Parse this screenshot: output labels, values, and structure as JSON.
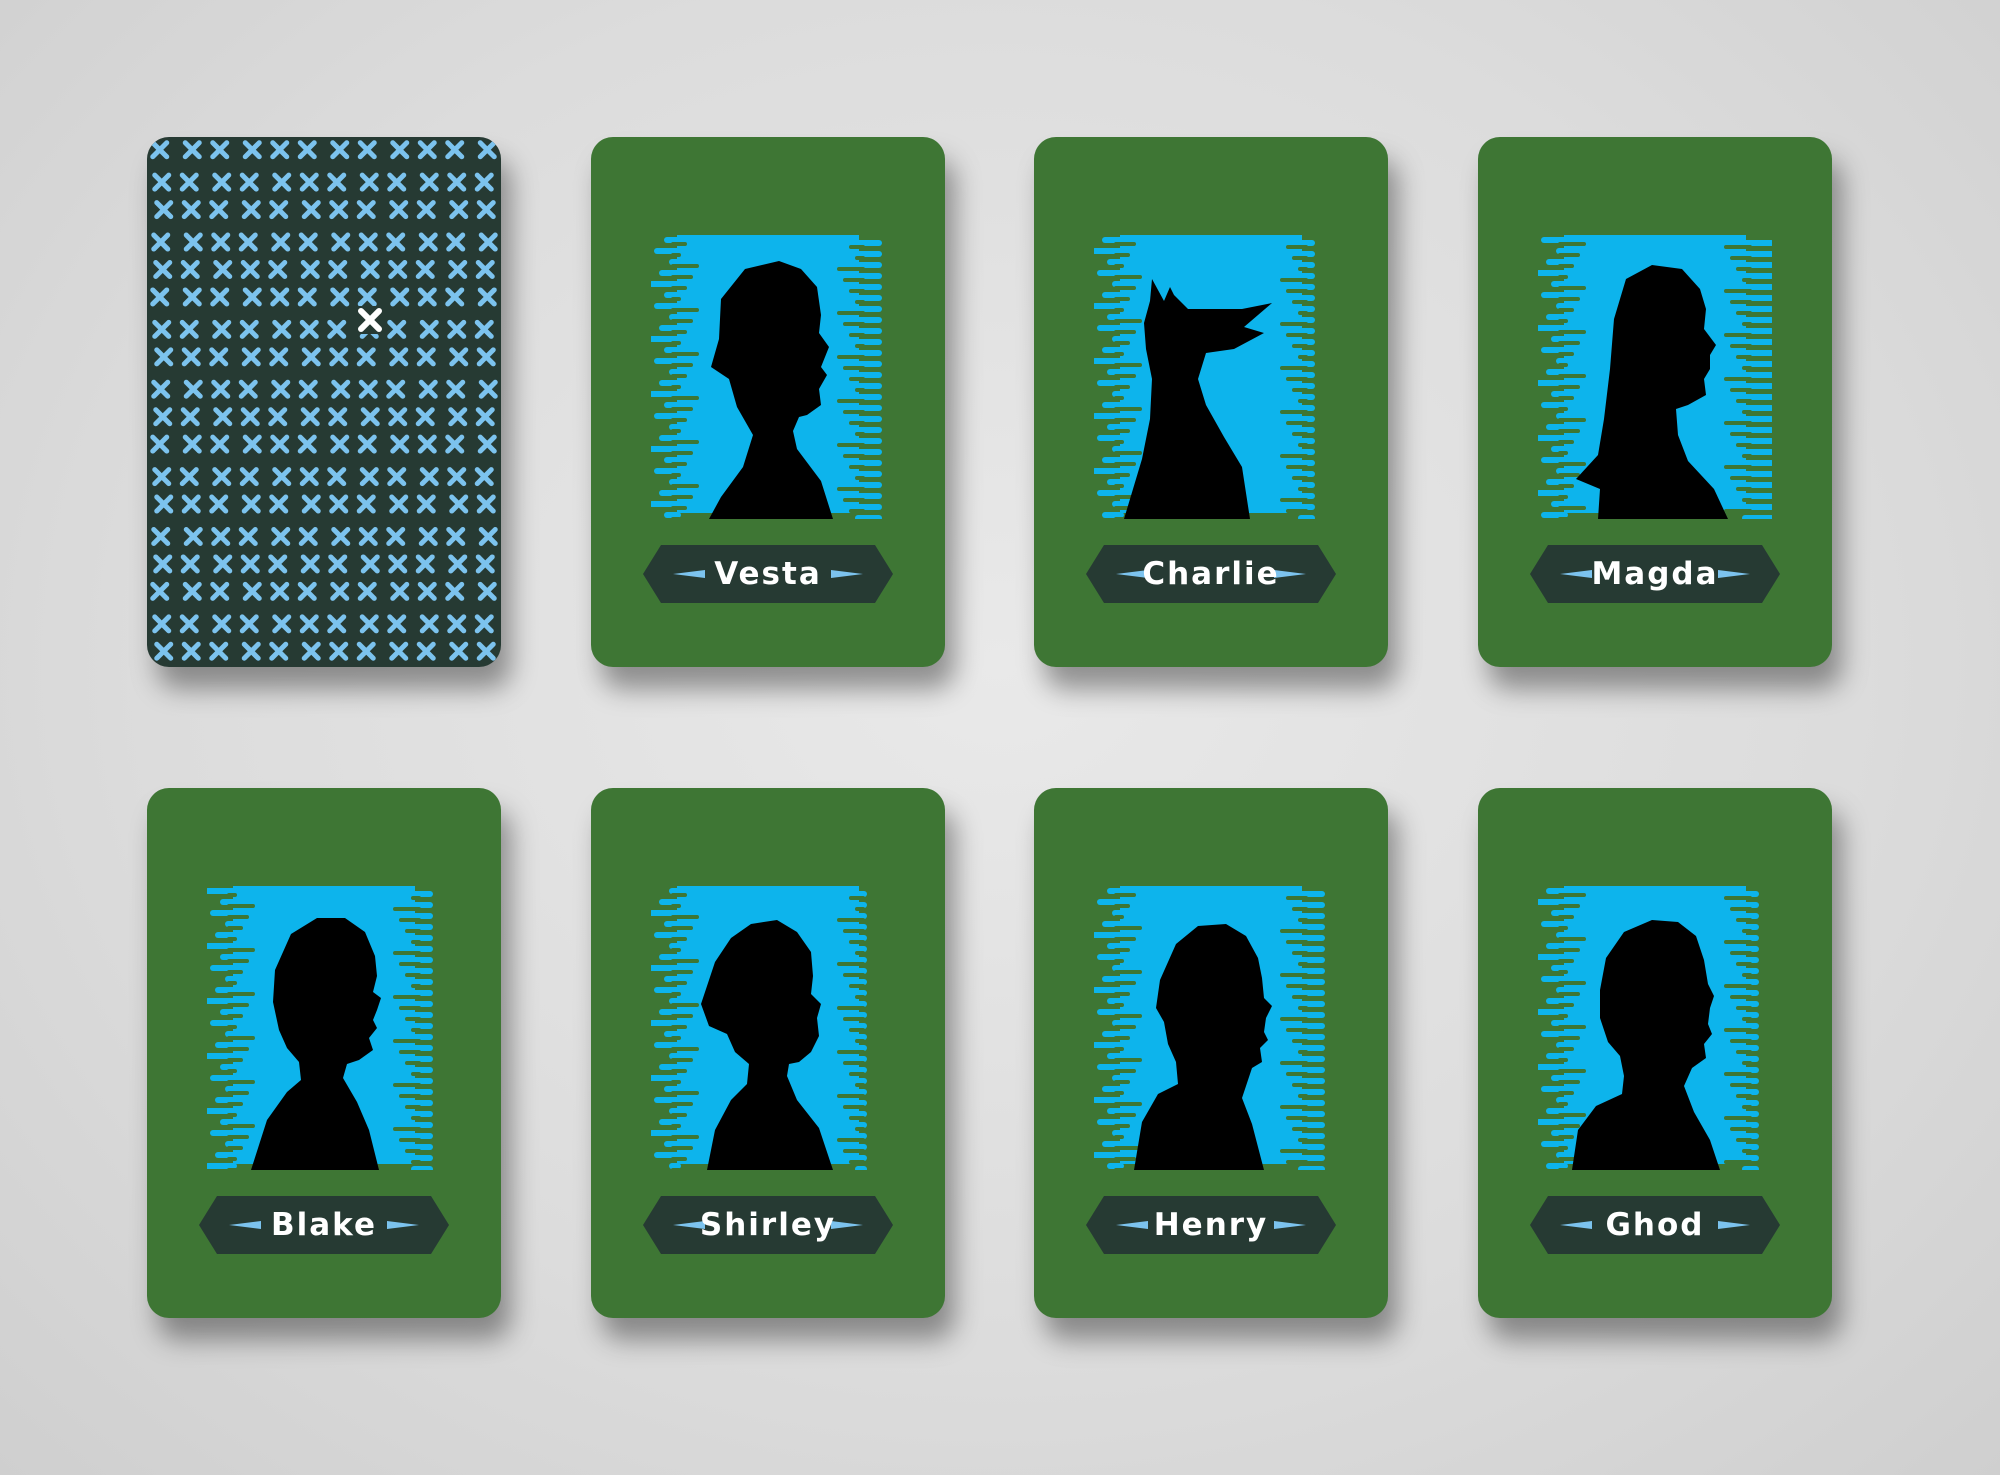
{
  "colors": {
    "background": "#dcdcdc",
    "card_face": "#3e7634",
    "card_back": "#263a33",
    "pattern": "#7cc3ee",
    "portrait_bg": "#0db4ec",
    "silhouette": "#000000",
    "nameplate": "#263a33",
    "nameplate_arrow": "#7cc3ee",
    "name_text": "#ffffff"
  },
  "card_back": {
    "pattern_icon": "x-icon",
    "highlight_icon": "x-icon"
  },
  "characters": [
    {
      "name": "Vesta",
      "silhouette": "woman-short-hair-silhouette-icon"
    },
    {
      "name": "Charlie",
      "silhouette": "dog-silhouette-icon"
    },
    {
      "name": "Magda",
      "silhouette": "woman-long-hair-silhouette-icon"
    },
    {
      "name": "Blake",
      "silhouette": "person-short-hair-silhouette-icon"
    },
    {
      "name": "Shirley",
      "silhouette": "woman-bun-silhouette-icon"
    },
    {
      "name": "Henry",
      "silhouette": "man-silhouette-icon"
    },
    {
      "name": "Ghod",
      "silhouette": "bald-man-silhouette-icon"
    }
  ]
}
